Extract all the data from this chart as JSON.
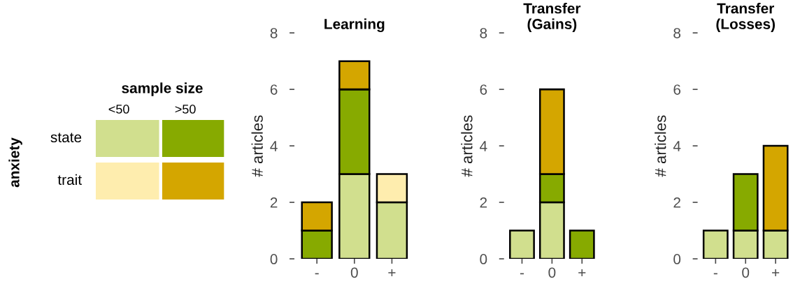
{
  "chart_data": [
    {
      "type": "other",
      "title": "sample size",
      "ylabel": "anxiety",
      "categories": [
        "<50",
        ">50"
      ],
      "y_categories": [
        "state",
        "trait"
      ],
      "colors": [
        "#d1df8e",
        "#87aa00",
        "#feedae",
        "#d4a600"
      ]
    },
    {
      "type": "bar",
      "stacked": true,
      "title": "Learning",
      "ylabel": "# articles",
      "categories": [
        "-",
        "0",
        "+"
      ],
      "ylim": [
        0,
        8
      ],
      "yticks": [
        0,
        2,
        4,
        6,
        8
      ],
      "grid": false,
      "legend": false,
      "series": [
        {
          "color": "#d1df8e",
          "values": [
            null,
            3,
            2
          ]
        },
        {
          "color": "#87aa00",
          "values": [
            1,
            3,
            null
          ]
        },
        {
          "color": "#feedae",
          "values": [
            null,
            null,
            1
          ]
        },
        {
          "color": "#d4a600",
          "values": [
            1,
            1,
            null
          ]
        }
      ]
    },
    {
      "type": "bar",
      "stacked": true,
      "title": "Transfer\n(Gains)",
      "ylabel": "# articles",
      "categories": [
        "-",
        "0",
        "+"
      ],
      "ylim": [
        0,
        8
      ],
      "yticks": [
        0,
        2,
        4,
        6,
        8
      ],
      "grid": false,
      "legend": false,
      "series": [
        {
          "color": "#d1df8e",
          "values": [
            1,
            2,
            null
          ]
        },
        {
          "color": "#87aa00",
          "values": [
            null,
            1,
            1
          ]
        },
        {
          "color": "#d4a600",
          "values": [
            null,
            3,
            null
          ]
        }
      ]
    },
    {
      "type": "bar",
      "stacked": true,
      "title": "Transfer\n(Losses)",
      "ylabel": "# articles",
      "categories": [
        "-",
        "0",
        "+"
      ],
      "ylim": [
        0,
        8
      ],
      "yticks": [
        0,
        2,
        4,
        6,
        8
      ],
      "grid": false,
      "legend": false,
      "series": [
        {
          "color": "#d1df8e",
          "values": [
            1,
            1,
            1
          ]
        },
        {
          "color": "#87aa00",
          "values": [
            null,
            2,
            null
          ]
        },
        {
          "color": "#d4a600",
          "values": [
            null,
            null,
            3
          ]
        }
      ]
    }
  ]
}
